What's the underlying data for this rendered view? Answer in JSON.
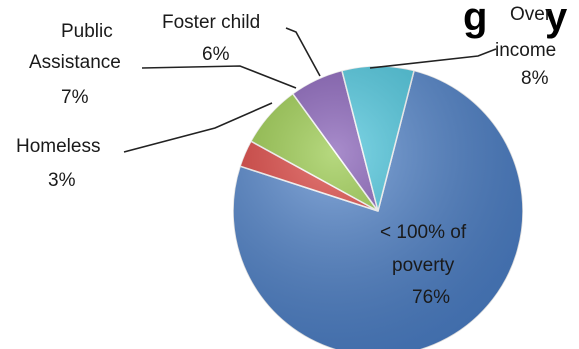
{
  "chart_data": {
    "type": "pie",
    "title": "",
    "title_fragment": "g",
    "title_fragment2": "y",
    "slices": [
      {
        "label_lines": [
          "< 100% of",
          "poverty"
        ],
        "value_text": "76%",
        "value": 76,
        "color": "#4a7fc9"
      },
      {
        "label_lines": [
          "Homeless"
        ],
        "value_text": "3%",
        "value": 3,
        "color": "#d8332f"
      },
      {
        "label_lines": [
          "Public",
          "Assistance"
        ],
        "value_text": "7%",
        "value": 7,
        "color": "#8fc43a"
      },
      {
        "label_lines": [
          "Foster child"
        ],
        "value_text": "6%",
        "value": 6,
        "color": "#7a4fb0"
      },
      {
        "label_lines": [
          "Over",
          "income"
        ],
        "value_text": "8%",
        "value": 8,
        "color": "#3fc3dc"
      }
    ],
    "legend": "none",
    "style": "3d-tilted"
  }
}
